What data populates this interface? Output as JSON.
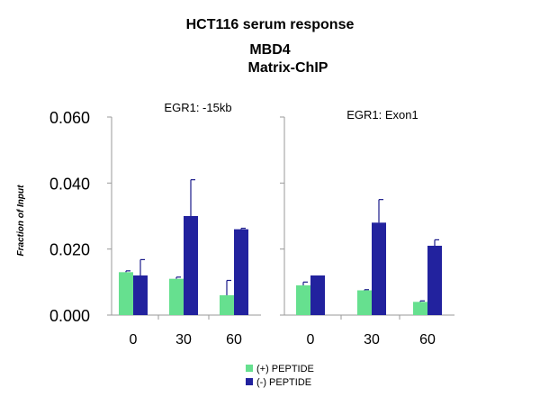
{
  "chart_data": {
    "type": "bar",
    "title": "HCT116 serum response",
    "subtitle_1": "MBD4",
    "subtitle_2": "Matrix-ChIP",
    "ylabel": "Fraction of Input",
    "ylim": [
      0,
      0.06
    ],
    "yticks": [
      "0.000",
      "0.020",
      "0.040",
      "0.060"
    ],
    "ytick_values": [
      0,
      0.02,
      0.04,
      0.06
    ],
    "legend_position": "bottom-center",
    "legend": [
      "(+) PEPTIDE",
      "(-) PEPTIDE"
    ],
    "colors": {
      "plus": "#66e08f",
      "minus": "#22229e",
      "error": "#1b1b8a",
      "axis": "#9a9a9a"
    },
    "panels": [
      {
        "title": "EGR1: -15kb",
        "categories": [
          "0",
          "30",
          "60"
        ],
        "series": [
          {
            "name": "(+) PEPTIDE",
            "values": [
              0.013,
              0.011,
              0.006
            ],
            "errors": [
              0.0004,
              0.0005,
              0.0045
            ]
          },
          {
            "name": "(-) PEPTIDE",
            "values": [
              0.012,
              0.03,
              0.026
            ],
            "errors": [
              0.0048,
              0.011,
              0.0003
            ]
          }
        ]
      },
      {
        "title": "EGR1: Exon1",
        "categories": [
          "0",
          "30",
          "60"
        ],
        "series": [
          {
            "name": "(+) PEPTIDE",
            "values": [
              0.009,
              0.0075,
              0.004
            ],
            "errors": [
              0.001,
              0.0002,
              0.0003
            ]
          },
          {
            "name": "(-) PEPTIDE",
            "values": [
              0.012,
              0.028,
              0.021
            ],
            "errors": [
              0.0,
              0.007,
              0.0018
            ]
          }
        ]
      }
    ]
  }
}
